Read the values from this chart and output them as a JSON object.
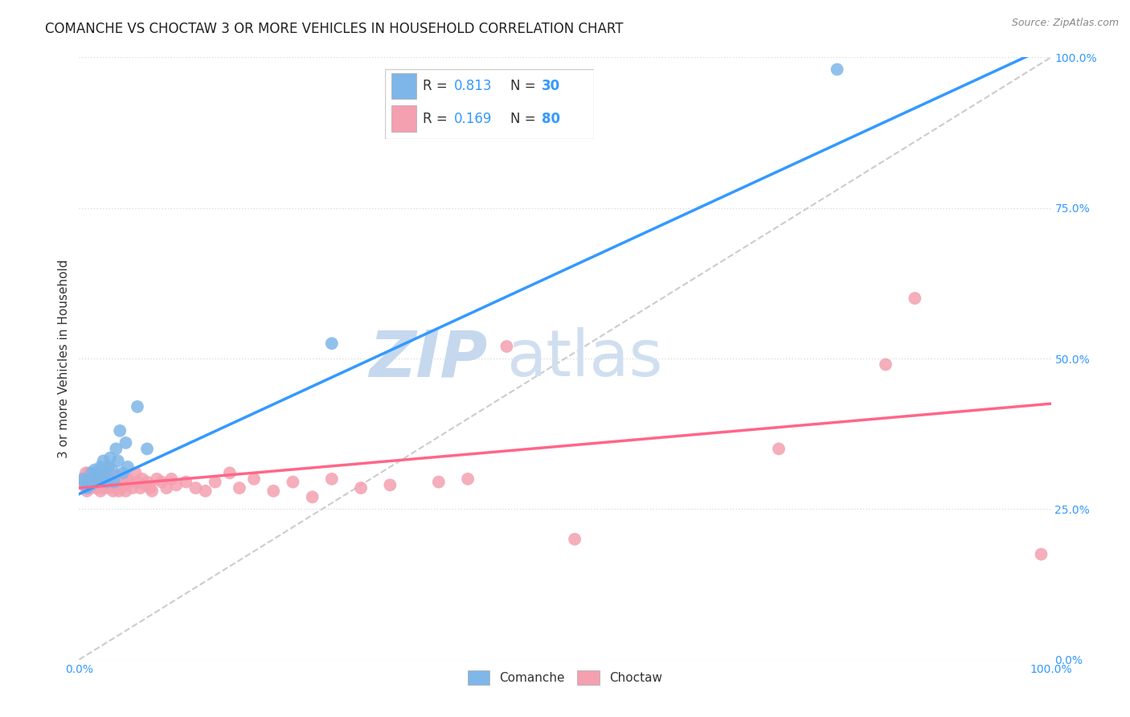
{
  "title": "COMANCHE VS CHOCTAW 3 OR MORE VEHICLES IN HOUSEHOLD CORRELATION CHART",
  "source": "Source: ZipAtlas.com",
  "ylabel": "3 or more Vehicles in Household",
  "xlim": [
    0,
    1.0
  ],
  "ylim": [
    0,
    1.0
  ],
  "xticks": [
    0.0,
    1.0
  ],
  "xtick_labels": [
    "0.0%",
    "100.0%"
  ],
  "yticks_right": [
    0.0,
    0.25,
    0.5,
    0.75,
    1.0
  ],
  "ytick_labels_right": [
    "0.0%",
    "25.0%",
    "50.0%",
    "75.0%",
    "100.0%"
  ],
  "comanche_R": 0.813,
  "comanche_N": 30,
  "choctaw_R": 0.169,
  "choctaw_N": 80,
  "comanche_color": "#7EB6E8",
  "choctaw_color": "#F4A0B0",
  "comanche_line_color": "#3399FF",
  "choctaw_line_color": "#FF6688",
  "diagonal_color": "#CCCCCC",
  "background_color": "#FFFFFF",
  "grid_color": "#DDDDDD",
  "watermark_color": "#D8EAF8",
  "title_fontsize": 12,
  "axis_label_fontsize": 11,
  "tick_fontsize": 10,
  "com_x": [
    0.004,
    0.006,
    0.008,
    0.01,
    0.012,
    0.013,
    0.015,
    0.016,
    0.018,
    0.019,
    0.02,
    0.022,
    0.024,
    0.025,
    0.027,
    0.028,
    0.03,
    0.032,
    0.034,
    0.036,
    0.038,
    0.04,
    0.042,
    0.045,
    0.048,
    0.05,
    0.06,
    0.07,
    0.26,
    0.78
  ],
  "com_y": [
    0.3,
    0.295,
    0.285,
    0.295,
    0.29,
    0.31,
    0.3,
    0.315,
    0.295,
    0.31,
    0.305,
    0.32,
    0.3,
    0.33,
    0.31,
    0.295,
    0.32,
    0.335,
    0.315,
    0.295,
    0.35,
    0.33,
    0.38,
    0.31,
    0.36,
    0.32,
    0.42,
    0.35,
    0.525,
    0.98
  ],
  "cho_x": [
    0.003,
    0.005,
    0.006,
    0.007,
    0.008,
    0.01,
    0.01,
    0.011,
    0.012,
    0.013,
    0.014,
    0.015,
    0.016,
    0.017,
    0.018,
    0.018,
    0.019,
    0.02,
    0.021,
    0.022,
    0.023,
    0.024,
    0.025,
    0.026,
    0.027,
    0.028,
    0.029,
    0.03,
    0.031,
    0.032,
    0.033,
    0.035,
    0.036,
    0.037,
    0.038,
    0.039,
    0.04,
    0.041,
    0.042,
    0.043,
    0.044,
    0.046,
    0.048,
    0.05,
    0.052,
    0.055,
    0.058,
    0.06,
    0.063,
    0.065,
    0.068,
    0.07,
    0.073,
    0.075,
    0.08,
    0.085,
    0.09,
    0.095,
    0.1,
    0.11,
    0.12,
    0.13,
    0.14,
    0.155,
    0.165,
    0.18,
    0.2,
    0.22,
    0.24,
    0.26,
    0.29,
    0.32,
    0.37,
    0.4,
    0.44,
    0.51,
    0.72,
    0.83,
    0.86,
    0.99
  ],
  "cho_y": [
    0.295,
    0.29,
    0.3,
    0.31,
    0.28,
    0.31,
    0.3,
    0.295,
    0.285,
    0.295,
    0.305,
    0.29,
    0.3,
    0.295,
    0.31,
    0.285,
    0.3,
    0.29,
    0.31,
    0.28,
    0.295,
    0.305,
    0.285,
    0.295,
    0.3,
    0.29,
    0.31,
    0.285,
    0.295,
    0.3,
    0.29,
    0.28,
    0.295,
    0.305,
    0.285,
    0.295,
    0.3,
    0.28,
    0.295,
    0.285,
    0.305,
    0.29,
    0.28,
    0.3,
    0.295,
    0.285,
    0.31,
    0.295,
    0.285,
    0.3,
    0.29,
    0.295,
    0.285,
    0.28,
    0.3,
    0.295,
    0.285,
    0.3,
    0.29,
    0.295,
    0.285,
    0.28,
    0.295,
    0.31,
    0.285,
    0.3,
    0.28,
    0.295,
    0.27,
    0.3,
    0.285,
    0.29,
    0.295,
    0.3,
    0.52,
    0.2,
    0.35,
    0.49,
    0.6,
    0.175
  ],
  "com_line_x0": 0.0,
  "com_line_y0": 0.275,
  "com_line_x1": 1.0,
  "com_line_y1": 1.02,
  "cho_line_x0": 0.0,
  "cho_line_y0": 0.285,
  "cho_line_x1": 1.0,
  "cho_line_y1": 0.425
}
